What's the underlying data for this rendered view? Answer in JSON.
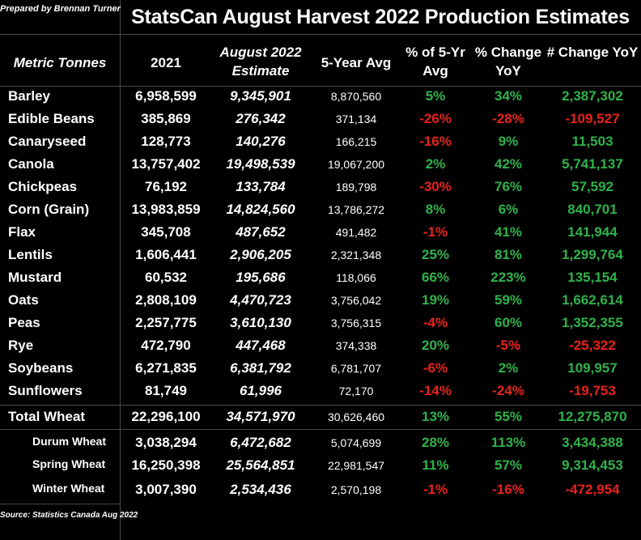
{
  "credit": "Prepared by Brennan Turner",
  "title": "StatsCan August Harvest 2022 Production Estimates",
  "headers": {
    "metric": "Metric Tonnes",
    "y2021": "2021",
    "aug2022": "August 2022 Estimate",
    "avg5": "5-Year Avg",
    "pct5": "% of 5-Yr Avg",
    "pctyoy": "% Change YoY",
    "numyoy": "# Change YoY"
  },
  "rows": [
    {
      "name": "Barley",
      "y2021": "6,958,599",
      "aug2022": "9,345,901",
      "avg5": "8,870,560",
      "pct5": "5%",
      "pctyoy": "34%",
      "numyoy": "2,387,302",
      "s5": "pos",
      "sp": "pos",
      "sn": "pos"
    },
    {
      "name": "Edible Beans",
      "y2021": "385,869",
      "aug2022": "276,342",
      "avg5": "371,134",
      "pct5": "-26%",
      "pctyoy": "-28%",
      "numyoy": "-109,527",
      "s5": "neg",
      "sp": "neg",
      "sn": "neg"
    },
    {
      "name": "Canaryseed",
      "y2021": "128,773",
      "aug2022": "140,276",
      "avg5": "166,215",
      "pct5": "-16%",
      "pctyoy": "9%",
      "numyoy": "11,503",
      "s5": "neg",
      "sp": "pos",
      "sn": "pos"
    },
    {
      "name": "Canola",
      "y2021": "13,757,402",
      "aug2022": "19,498,539",
      "avg5": "19,067,200",
      "pct5": "2%",
      "pctyoy": "42%",
      "numyoy": "5,741,137",
      "s5": "pos",
      "sp": "pos",
      "sn": "pos"
    },
    {
      "name": "Chickpeas",
      "y2021": "76,192",
      "aug2022": "133,784",
      "avg5": "189,798",
      "pct5": "-30%",
      "pctyoy": "76%",
      "numyoy": "57,592",
      "s5": "neg",
      "sp": "pos",
      "sn": "pos"
    },
    {
      "name": "Corn (Grain)",
      "y2021": "13,983,859",
      "aug2022": "14,824,560",
      "avg5": "13,786,272",
      "pct5": "8%",
      "pctyoy": "6%",
      "numyoy": "840,701",
      "s5": "pos",
      "sp": "pos",
      "sn": "pos"
    },
    {
      "name": "Flax",
      "y2021": "345,708",
      "aug2022": "487,652",
      "avg5": "491,482",
      "pct5": "-1%",
      "pctyoy": "41%",
      "numyoy": "141,944",
      "s5": "neg",
      "sp": "pos",
      "sn": "pos"
    },
    {
      "name": "Lentils",
      "y2021": "1,606,441",
      "aug2022": "2,906,205",
      "avg5": "2,321,348",
      "pct5": "25%",
      "pctyoy": "81%",
      "numyoy": "1,299,764",
      "s5": "pos",
      "sp": "pos",
      "sn": "pos"
    },
    {
      "name": "Mustard",
      "y2021": "60,532",
      "aug2022": "195,686",
      "avg5": "118,066",
      "pct5": "66%",
      "pctyoy": "223%",
      "numyoy": "135,154",
      "s5": "pos",
      "sp": "pos",
      "sn": "pos"
    },
    {
      "name": "Oats",
      "y2021": "2,808,109",
      "aug2022": "4,470,723",
      "avg5": "3,756,042",
      "pct5": "19%",
      "pctyoy": "59%",
      "numyoy": "1,662,614",
      "s5": "pos",
      "sp": "pos",
      "sn": "pos"
    },
    {
      "name": "Peas",
      "y2021": "2,257,775",
      "aug2022": "3,610,130",
      "avg5": "3,756,315",
      "pct5": "-4%",
      "pctyoy": "60%",
      "numyoy": "1,352,355",
      "s5": "neg",
      "sp": "pos",
      "sn": "pos"
    },
    {
      "name": "Rye",
      "y2021": "472,790",
      "aug2022": "447,468",
      "avg5": "374,338",
      "pct5": "20%",
      "pctyoy": "-5%",
      "numyoy": "-25,322",
      "s5": "pos",
      "sp": "neg",
      "sn": "neg"
    },
    {
      "name": "Soybeans",
      "y2021": "6,271,835",
      "aug2022": "6,381,792",
      "avg5": "6,781,707",
      "pct5": "-6%",
      "pctyoy": "2%",
      "numyoy": "109,957",
      "s5": "neg",
      "sp": "pos",
      "sn": "pos"
    },
    {
      "name": "Sunflowers",
      "y2021": "81,749",
      "aug2022": "61,996",
      "avg5": "72,170",
      "pct5": "-14%",
      "pctyoy": "-24%",
      "numyoy": "-19,753",
      "s5": "neg",
      "sp": "neg",
      "sn": "neg"
    },
    {
      "name": "Total Wheat",
      "y2021": "22,296,100",
      "aug2022": "34,571,970",
      "avg5": "30,626,460",
      "pct5": "13%",
      "pctyoy": "55%",
      "numyoy": "12,275,870",
      "s5": "pos",
      "sp": "pos",
      "sn": "pos"
    },
    {
      "name": "Durum Wheat",
      "y2021": "3,038,294",
      "aug2022": "6,472,682",
      "avg5": "5,074,699",
      "pct5": "28%",
      "pctyoy": "113%",
      "numyoy": "3,434,388",
      "s5": "pos",
      "sp": "pos",
      "sn": "pos",
      "sub": true
    },
    {
      "name": "Spring Wheat",
      "y2021": "16,250,398",
      "aug2022": "25,564,851",
      "avg5": "22,981,547",
      "pct5": "11%",
      "pctyoy": "57%",
      "numyoy": "9,314,453",
      "s5": "pos",
      "sp": "pos",
      "sn": "pos",
      "sub": true
    },
    {
      "name": "Winter Wheat",
      "y2021": "3,007,390",
      "aug2022": "2,534,436",
      "avg5": "2,570,198",
      "pct5": "-1%",
      "pctyoy": "-16%",
      "numyoy": "-472,954",
      "s5": "neg",
      "sp": "neg",
      "sn": "neg",
      "sub": true
    }
  ],
  "source": "Source: Statistics Canada Aug 2022"
}
